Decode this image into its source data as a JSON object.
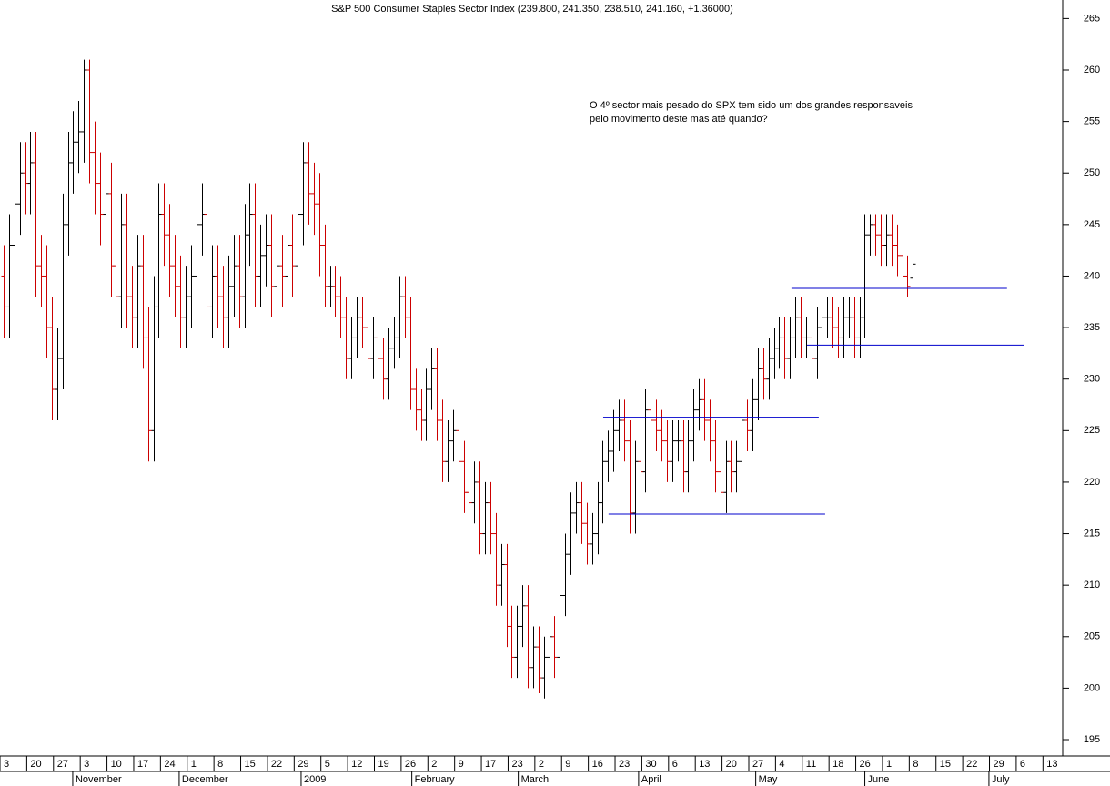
{
  "chart_data": {
    "type": "ohlc",
    "title": "S&P 500 Consumer Staples Sector Index (239.800, 241.350, 238.510, 241.160, +1.36000)",
    "annotation": [
      "O 4º sector mais pesado do SPX tem sido um dos grandes responsaveis",
      "pelo movimento deste mas até quando?"
    ],
    "annotation_color": "#0000cc",
    "up_color": "#000000",
    "down_color": "#cc0000",
    "x": [
      0,
      1,
      2,
      3,
      4,
      5,
      6,
      7,
      8,
      9,
      10,
      11,
      12,
      13,
      14,
      15,
      16,
      17,
      18,
      19,
      20,
      21,
      22,
      23,
      24,
      25,
      26,
      27,
      28,
      29,
      30,
      31,
      32,
      33,
      34,
      35,
      36,
      37,
      38,
      39,
      40,
      41,
      42,
      43,
      44,
      45,
      46,
      47,
      48,
      49,
      50,
      51,
      52,
      53,
      54,
      55,
      56,
      57,
      58,
      59,
      60,
      61,
      62,
      63,
      64,
      65,
      66,
      67,
      68,
      69,
      70,
      71,
      72,
      73,
      74,
      75,
      76,
      77,
      78,
      79,
      80,
      81,
      82,
      83,
      84,
      85,
      86,
      87,
      88,
      89,
      90,
      91,
      92,
      93,
      94,
      95,
      96,
      97,
      98,
      99,
      100,
      101,
      102,
      103,
      104,
      105,
      106,
      107,
      108,
      109,
      110,
      111,
      112,
      113,
      114,
      115,
      116,
      117,
      118,
      119,
      120,
      121,
      122,
      123,
      124,
      125,
      126,
      127,
      128,
      129,
      130,
      131,
      132,
      133,
      134,
      135,
      136,
      137,
      138,
      139,
      140,
      141,
      142,
      143,
      144,
      145,
      146,
      147,
      148,
      149,
      150,
      151,
      152,
      153,
      154,
      155,
      156,
      157,
      158,
      159,
      160,
      161,
      162,
      163,
      164,
      165,
      166,
      167,
      168,
      169,
      170
    ],
    "open": [
      240,
      237,
      243,
      247,
      250,
      249,
      251,
      241,
      240,
      235,
      229,
      232,
      245,
      251,
      253,
      254,
      260,
      252,
      249,
      246,
      248,
      241,
      238,
      245,
      238,
      236,
      241,
      234,
      225,
      237,
      246,
      244,
      241,
      239,
      236,
      238,
      240,
      245,
      246,
      237,
      240,
      238,
      236,
      239,
      241,
      238,
      244,
      246,
      240,
      242,
      243,
      239,
      241,
      240,
      243,
      241,
      246,
      251,
      248,
      247,
      243,
      239,
      239,
      238,
      236,
      232,
      234,
      236,
      235,
      232,
      234,
      232,
      230,
      233,
      234,
      238,
      236,
      229,
      227,
      226,
      229,
      231,
      226,
      222,
      224,
      225,
      222,
      219,
      218,
      220,
      215,
      218,
      215,
      210,
      212,
      206,
      203,
      206,
      208,
      202,
      204,
      201,
      203,
      205,
      203,
      209,
      213,
      217,
      218,
      216,
      214,
      215,
      218,
      222,
      223,
      225,
      226,
      224,
      217,
      222,
      221,
      227,
      226,
      225,
      224,
      222,
      224,
      224,
      221,
      224,
      227,
      228,
      226,
      224,
      221,
      219,
      222,
      221,
      222,
      226,
      225,
      228,
      231,
      230,
      232,
      233,
      234,
      232,
      234,
      236,
      234,
      234,
      232,
      235,
      236,
      236,
      235,
      234,
      236,
      236,
      234,
      236,
      244,
      245,
      244,
      243,
      244,
      243,
      242,
      240,
      239.8
    ],
    "high": [
      243,
      246,
      250,
      253,
      253,
      254,
      254,
      244,
      243,
      238,
      235,
      248,
      254,
      256,
      257,
      261,
      261,
      255,
      252,
      251,
      251,
      244,
      248,
      248,
      241,
      244,
      244,
      237,
      240,
      249,
      249,
      247,
      244,
      242,
      241,
      243,
      248,
      249,
      249,
      243,
      243,
      241,
      242,
      244,
      244,
      247,
      249,
      249,
      245,
      246,
      246,
      244,
      244,
      246,
      246,
      249,
      253,
      253,
      251,
      250,
      245,
      241,
      241,
      240,
      238,
      236,
      238,
      238,
      237,
      236,
      236,
      234,
      235,
      236,
      240,
      240,
      238,
      231,
      229,
      231,
      233,
      233,
      228,
      226,
      227,
      227,
      224,
      221,
      222,
      222,
      220,
      220,
      217,
      214,
      214,
      208,
      208,
      210,
      210,
      206,
      206,
      205,
      207,
      207,
      211,
      215,
      219,
      220,
      220,
      218,
      217,
      220,
      224,
      225,
      227,
      228,
      228,
      226,
      224,
      224,
      229,
      229,
      228,
      227,
      226,
      226,
      226,
      226,
      226,
      229,
      230,
      230,
      228,
      226,
      223,
      224,
      224,
      224,
      228,
      228,
      230,
      233,
      233,
      234,
      235,
      236,
      236,
      236,
      238,
      238,
      236,
      236,
      237,
      238,
      238,
      238,
      237,
      238,
      238,
      238,
      238,
      246,
      246,
      246,
      246,
      246,
      246,
      245,
      244,
      242,
      241.35
    ],
    "low": [
      234,
      234,
      240,
      244,
      246,
      246,
      238,
      237,
      232,
      226,
      226,
      229,
      242,
      248,
      250,
      251,
      249,
      246,
      243,
      243,
      238,
      235,
      235,
      235,
      233,
      233,
      231,
      222,
      222,
      234,
      241,
      238,
      236,
      233,
      233,
      235,
      237,
      242,
      234,
      234,
      235,
      233,
      233,
      236,
      235,
      235,
      241,
      237,
      237,
      239,
      236,
      236,
      237,
      237,
      238,
      238,
      243,
      245,
      244,
      240,
      237,
      237,
      236,
      234,
      230,
      230,
      232,
      233,
      230,
      230,
      230,
      228,
      228,
      231,
      232,
      234,
      227,
      225,
      224,
      224,
      227,
      224,
      220,
      220,
      222,
      220,
      217,
      216,
      216,
      213,
      213,
      213,
      208,
      208,
      204,
      201,
      201,
      204,
      200,
      200,
      199.5,
      199,
      201,
      201,
      201,
      207,
      211,
      215,
      214,
      212,
      212,
      213,
      216,
      220,
      221,
      223,
      222,
      215,
      215,
      217,
      219,
      224,
      223,
      222,
      220,
      220,
      222,
      219,
      219,
      222,
      225,
      224,
      222,
      219,
      218,
      217,
      219,
      219,
      220,
      223,
      223,
      226,
      228,
      228,
      230,
      231,
      230,
      230,
      232,
      232,
      232,
      230,
      230,
      233,
      234,
      233,
      232,
      232,
      234,
      232,
      232,
      234,
      242,
      242,
      241,
      241,
      241,
      240,
      238,
      238,
      238.51
    ],
    "close": [
      237,
      243,
      247,
      250,
      249,
      251,
      241,
      240,
      235,
      229,
      232,
      245,
      251,
      253,
      254,
      260,
      252,
      249,
      246,
      248,
      241,
      238,
      245,
      238,
      236,
      241,
      234,
      225,
      237,
      246,
      244,
      241,
      239,
      236,
      238,
      240,
      245,
      246,
      237,
      240,
      238,
      236,
      239,
      241,
      238,
      244,
      246,
      240,
      242,
      243,
      239,
      241,
      240,
      243,
      241,
      246,
      251,
      248,
      247,
      243,
      239,
      239,
      238,
      236,
      232,
      234,
      236,
      235,
      232,
      234,
      232,
      230,
      233,
      234,
      238,
      236,
      229,
      227,
      226,
      229,
      231,
      226,
      222,
      224,
      225,
      222,
      219,
      218,
      220,
      215,
      218,
      215,
      210,
      212,
      206,
      203,
      206,
      208,
      202,
      204,
      201,
      203,
      205,
      203,
      209,
      213,
      217,
      218,
      216,
      214,
      215,
      218,
      222,
      223,
      225,
      226,
      224,
      217,
      222,
      221,
      227,
      226,
      225,
      224,
      222,
      224,
      224,
      221,
      224,
      227,
      228,
      226,
      224,
      221,
      219,
      222,
      221,
      222,
      226,
      225,
      228,
      231,
      230,
      232,
      233,
      234,
      232,
      234,
      236,
      234,
      234,
      232,
      235,
      236,
      236,
      235,
      234,
      236,
      236,
      234,
      236,
      244,
      245,
      244,
      243,
      244,
      243,
      242,
      240,
      239,
      241.16
    ],
    "xlim": [
      -0.68,
      197.5
    ],
    "ylim": [
      193.5,
      266.8
    ],
    "yticks": [
      195,
      200,
      205,
      210,
      215,
      220,
      225,
      230,
      235,
      240,
      245,
      250,
      255,
      260,
      265
    ],
    "xticks": [
      {
        "value": 0,
        "label": "3"
      },
      {
        "value": 5,
        "label": "20"
      },
      {
        "value": 10,
        "label": "27"
      },
      {
        "value": 15,
        "label": "3"
      },
      {
        "value": 20,
        "label": "10"
      },
      {
        "value": 25,
        "label": "17"
      },
      {
        "value": 30,
        "label": "24"
      },
      {
        "value": 35,
        "label": "1"
      },
      {
        "value": 40,
        "label": "8"
      },
      {
        "value": 45,
        "label": "15"
      },
      {
        "value": 50,
        "label": "22"
      },
      {
        "value": 55,
        "label": "29"
      },
      {
        "value": 60,
        "label": "5"
      },
      {
        "value": 65,
        "label": "12"
      },
      {
        "value": 70,
        "label": "19"
      },
      {
        "value": 75,
        "label": "26"
      },
      {
        "value": 80,
        "label": "2"
      },
      {
        "value": 85,
        "label": "9"
      },
      {
        "value": 90,
        "label": "17"
      },
      {
        "value": 95,
        "label": "23"
      },
      {
        "value": 100,
        "label": "2"
      },
      {
        "value": 105,
        "label": "9"
      },
      {
        "value": 110,
        "label": "16"
      },
      {
        "value": 115,
        "label": "23"
      },
      {
        "value": 120,
        "label": "30"
      },
      {
        "value": 125,
        "label": "6"
      },
      {
        "value": 130,
        "label": "13"
      },
      {
        "value": 135,
        "label": "20"
      },
      {
        "value": 140,
        "label": "27"
      },
      {
        "value": 145,
        "label": "4"
      },
      {
        "value": 150,
        "label": "11"
      },
      {
        "value": 155,
        "label": "18"
      },
      {
        "value": 160,
        "label": "26"
      },
      {
        "value": 165,
        "label": "1"
      },
      {
        "value": 170,
        "label": "8"
      },
      {
        "value": 175,
        "label": "15"
      },
      {
        "value": 180,
        "label": "22"
      },
      {
        "value": 185,
        "label": "29"
      },
      {
        "value": 190,
        "label": "6"
      },
      {
        "value": 195,
        "label": "13"
      }
    ],
    "months": [
      {
        "value": 13.6,
        "label": "November"
      },
      {
        "value": 33.5,
        "label": "December"
      },
      {
        "value": 56.3,
        "label": "2009"
      },
      {
        "value": 77,
        "label": "February"
      },
      {
        "value": 96.9,
        "label": "March"
      },
      {
        "value": 119.4,
        "label": "April"
      },
      {
        "value": 141.3,
        "label": "May"
      },
      {
        "value": 161.7,
        "label": "June"
      },
      {
        "value": 184.9,
        "label": "July"
      }
    ],
    "lines": [
      {
        "y": 238.8,
        "x": [
          147.3,
          187.6
        ],
        "color": "#0000cc"
      },
      {
        "y": 233.3,
        "x": [
          150.2,
          190.8
        ],
        "color": "#0000cc"
      },
      {
        "y": 226.3,
        "x": [
          112.1,
          152.4
        ],
        "color": "#0000cc"
      },
      {
        "y": 216.9,
        "x": [
          113.1,
          153.6
        ],
        "color": "#0000cc"
      }
    ]
  }
}
